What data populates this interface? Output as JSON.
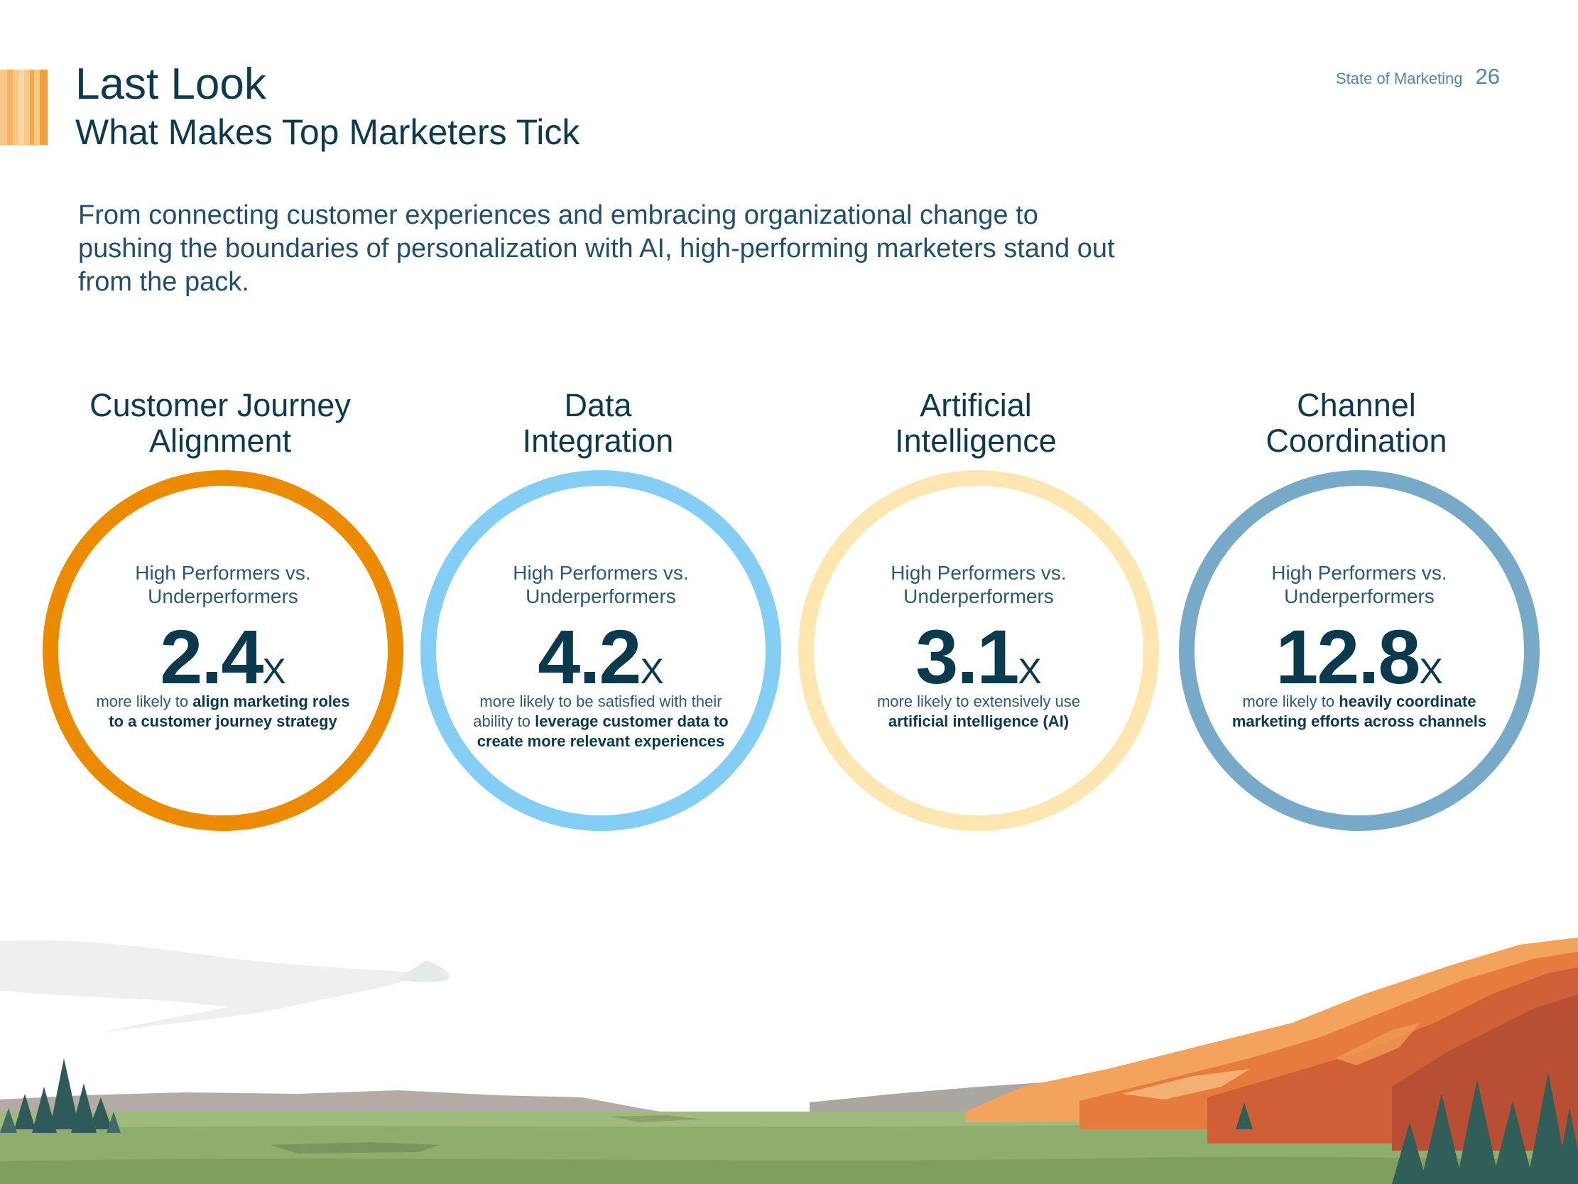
{
  "header": {
    "title": "Last Look",
    "subtitle": "What Makes Top Marketers Tick",
    "section_label": "State of Marketing",
    "page_number": "26"
  },
  "intro": "From connecting customer experiences and embracing organizational change to pushing the boundaries of personalization with AI, high-performing marketers stand out from the pack.",
  "stats": [
    {
      "title": "Customer Journey\nAlignment",
      "comparison": "High Performers vs.\nUnderperformers",
      "value": "2.4",
      "suffix": "X",
      "desc_plain": "more likely to ",
      "desc_bold": "align marketing roles to a customer journey strategy",
      "ring_color": "#ed8b00"
    },
    {
      "title": "Data\nIntegration",
      "comparison": "High Performers vs.\nUnderperformers",
      "value": "4.2",
      "suffix": "X",
      "desc_plain": "more likely to be satisfied with their ability to ",
      "desc_bold": "leverage customer data to create more relevant experiences",
      "ring_color": "#84cef5"
    },
    {
      "title": "Artificial\nIntelligence",
      "comparison": "High Performers vs.\nUnderperformers",
      "value": "3.1",
      "suffix": "X",
      "desc_plain": "more likely to extensively use ",
      "desc_bold": "artificial intelligence (AI)",
      "ring_color": "#fde6b0"
    },
    {
      "title": "Channel\nCoordination",
      "comparison": "High Performers vs.\nUnderperformers",
      "value": "12.8",
      "suffix": "X",
      "desc_plain": "more likely to ",
      "desc_bold": "heavily coordinate marketing efforts across channels",
      "ring_color": "#77aac9"
    }
  ]
}
